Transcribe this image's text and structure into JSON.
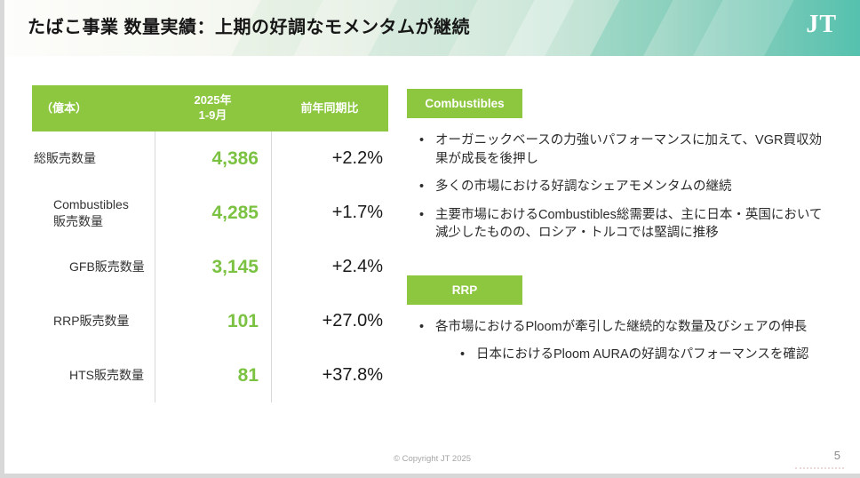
{
  "slide": {
    "title": "たばこ事業 数量実績：上期の好調なモメンタムが継続",
    "logo_text": "JT",
    "copyright": "© Copyright JT 2025",
    "page_number": "5"
  },
  "colors": {
    "accent_green": "#8DC63F",
    "value_green": "#7CC242",
    "header_teal": "#55C1AE"
  },
  "table": {
    "unit_header": "（億本）",
    "period_header": "2025年\n1-9月",
    "yoy_header": "前年同期比",
    "rows": [
      {
        "label": "総販売数量",
        "indent": 0,
        "value": "4,386",
        "yoy": "+2.2%"
      },
      {
        "label": "Combustibles\n販売数量",
        "indent": 1,
        "value": "4,285",
        "yoy": "+1.7%"
      },
      {
        "label": "GFB販売数量",
        "indent": 2,
        "value": "3,145",
        "yoy": "+2.4%"
      },
      {
        "label": "RRP販売数量",
        "indent": 1,
        "value": "101",
        "yoy": "+27.0%"
      },
      {
        "label": "HTS販売数量",
        "indent": 2,
        "value": "81",
        "yoy": "+37.8%"
      }
    ]
  },
  "sections": [
    {
      "badge": "Combustibles",
      "bullets": [
        {
          "text": "オーガニックベースの力強いパフォーマンスに加えて、VGR買収効果が成長を後押し",
          "level": 1
        },
        {
          "text": "多くの市場における好調なシェアモメンタムの継続",
          "level": 1
        },
        {
          "text": "主要市場におけるCombustibles総需要は、主に日本・英国において減少したものの、ロシア・トルコでは堅調に推移",
          "level": 1
        }
      ]
    },
    {
      "badge": "RRP",
      "bullets": [
        {
          "text": "各市場におけるPloomが牽引した継続的な数量及びシェアの伸長",
          "level": 1
        },
        {
          "text": "日本におけるPloom AURAの好調なパフォーマンスを確認",
          "level": 2
        }
      ]
    }
  ]
}
